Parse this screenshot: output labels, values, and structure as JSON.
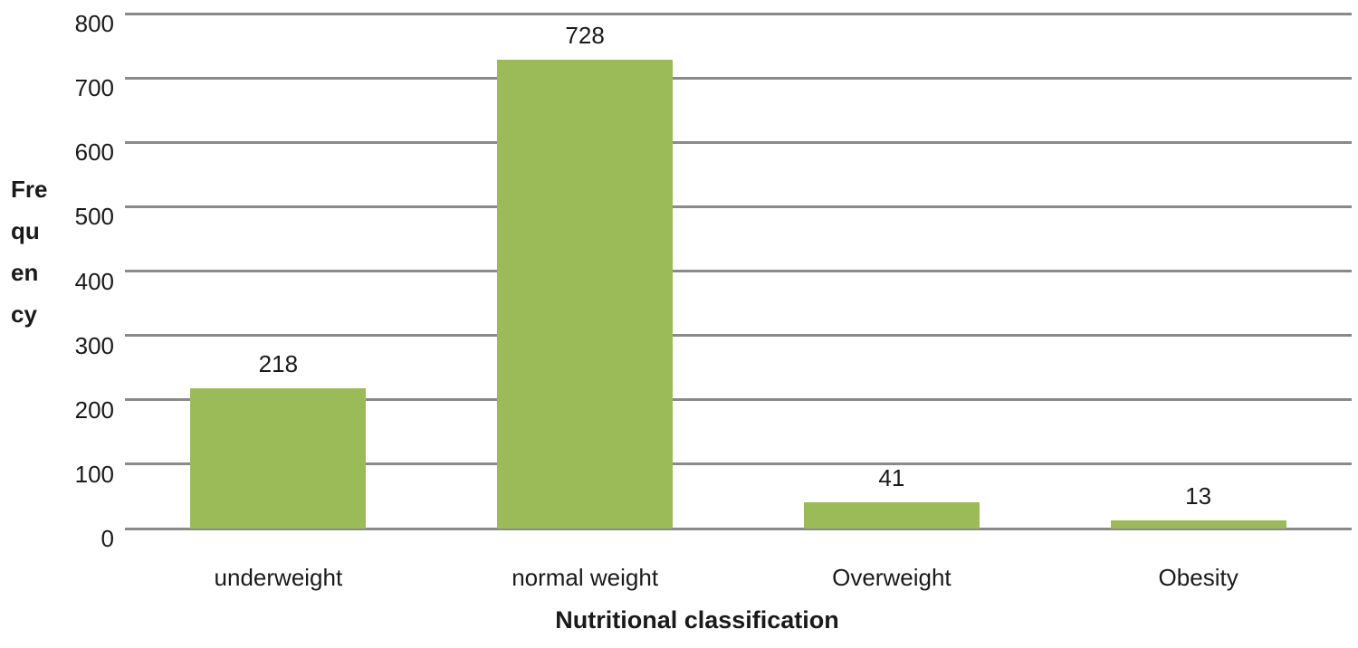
{
  "chart_data": {
    "type": "bar",
    "categories": [
      "underweight",
      "normal weight",
      "Overweight",
      "Obesity"
    ],
    "values": [
      218,
      728,
      41,
      13
    ],
    "title": "",
    "xlabel": "Nutritional classification",
    "ylabel": "Frequency",
    "ylabel_wrapped_lines": [
      "Fre",
      "qu",
      "en",
      "cy"
    ],
    "ylim": [
      0,
      800
    ],
    "yticks": [
      0,
      100,
      200,
      300,
      400,
      500,
      600,
      700,
      800
    ],
    "grid": true,
    "legend": false,
    "bar_color": "#9bbb59",
    "gridline_color": "#8a8a8a",
    "text_color": "#1a1a1a",
    "background_color": "#ffffff"
  }
}
